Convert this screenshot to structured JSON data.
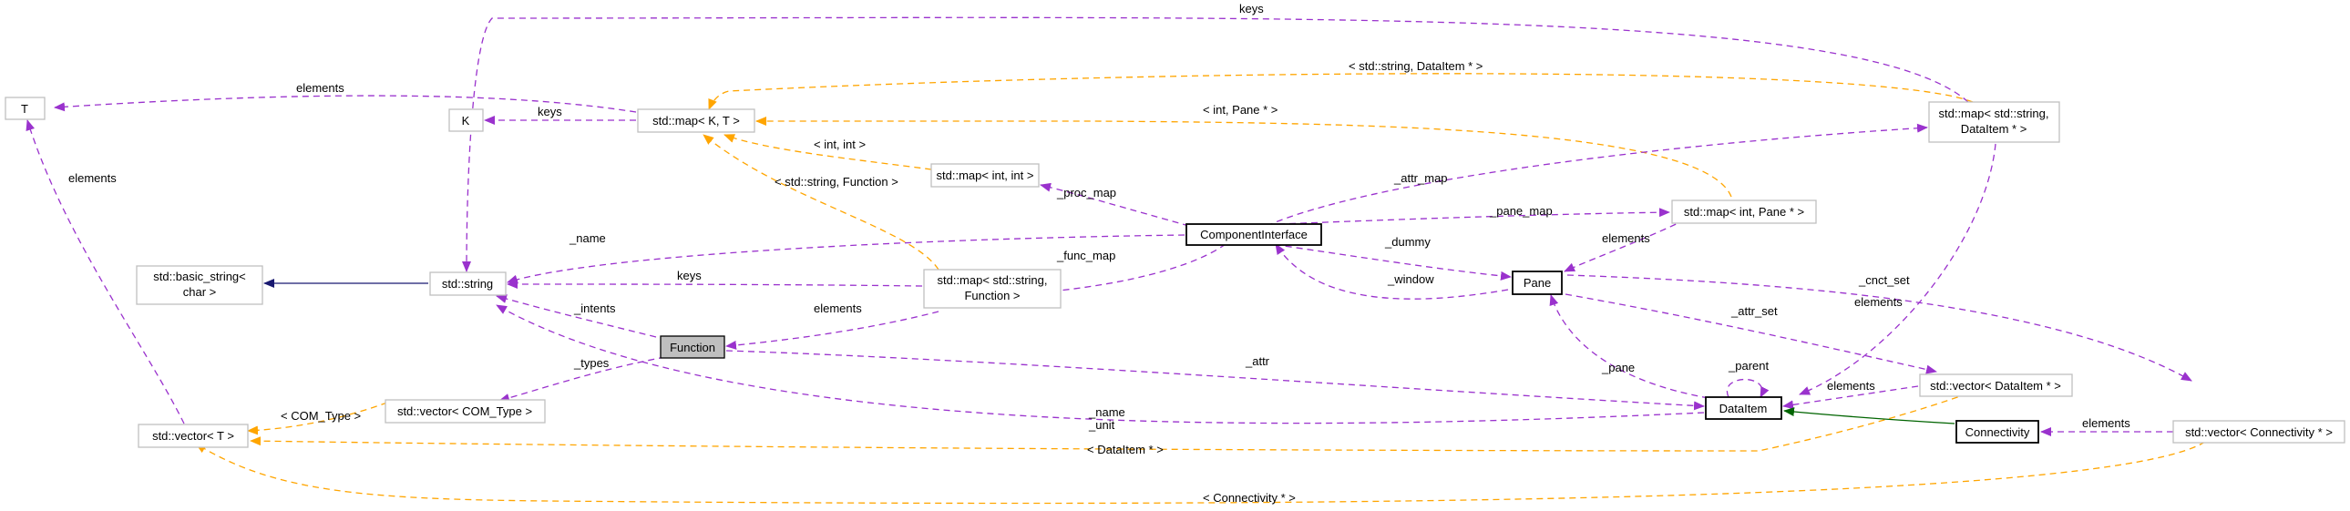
{
  "nodes": {
    "T": {
      "label": [
        "T"
      ]
    },
    "K": {
      "label": [
        "K"
      ]
    },
    "map_k_t": {
      "label": [
        "std::map< K, T >"
      ]
    },
    "map_int_int": {
      "label": [
        "std::map< int, int >"
      ]
    },
    "map_string_dataitem": {
      "label": [
        "std::map< std::string,",
        "DataItem * >"
      ]
    },
    "basic_string": {
      "label": [
        "std::basic_string<",
        "char >"
      ]
    },
    "string": {
      "label": [
        "std::string"
      ]
    },
    "component_interface": {
      "label": [
        "ComponentInterface"
      ]
    },
    "map_int_pane": {
      "label": [
        "std::map< int, Pane * >"
      ]
    },
    "map_string_function": {
      "label": [
        "std::map< std::string,",
        "Function >"
      ]
    },
    "pane": {
      "label": [
        "Pane"
      ]
    },
    "function": {
      "label": [
        "Function"
      ]
    },
    "vector_com_type": {
      "label": [
        "std::vector< COM_Type >"
      ]
    },
    "vector_t": {
      "label": [
        "std::vector< T >"
      ]
    },
    "dataitem": {
      "label": [
        "DataItem"
      ]
    },
    "vector_dataitem": {
      "label": [
        "std::vector< DataItem * >"
      ]
    },
    "connectivity": {
      "label": [
        "Connectivity"
      ]
    },
    "vector_connectivity": {
      "label": [
        "std::vector< Connectivity * >"
      ]
    }
  },
  "edge_labels": {
    "keys_top": "keys",
    "string_dataitem_tmpl": "< std::string, DataItem * >",
    "elements_t": "elements",
    "keys_k": "keys",
    "int_pane_tmpl": "< int, Pane * >",
    "int_int_tmpl": "< int, int >",
    "string_function_tmpl": "< std::string, Function >",
    "elements_vector_t": "elements",
    "attr_map": "_attr_map",
    "proc_map": "_proc_map",
    "pane_map": "_pane_map",
    "name": "_name",
    "elements_pane": "elements",
    "dummy": "_dummy",
    "func_map": "_func_map",
    "keys_string": "keys",
    "window": "_window",
    "cnct_set": "_cnct_set",
    "elements_dataitem_map": "elements",
    "intents": "_intents",
    "elements_function": "elements",
    "attr_set": "_attr_set",
    "types": "_types",
    "attr": "_attr",
    "pane": "_pane",
    "parent": "_parent",
    "com_type_tmpl": "< COM_Type >",
    "name_unit_1": "_name",
    "name_unit_2": "_unit",
    "elements_vec_dataitem": "elements",
    "elements_vec_connectivity": "elements",
    "dataitem_tmpl": "< DataItem * >",
    "connectivity_tmpl": "< Connectivity * >"
  },
  "colors": {
    "member": "#9a32cd",
    "template": "#ffa500",
    "inherit_public": "#191970",
    "inherit_derived": "#006400",
    "node_border": "#bfbfbf",
    "focus_fill": "#bfbfbf"
  }
}
